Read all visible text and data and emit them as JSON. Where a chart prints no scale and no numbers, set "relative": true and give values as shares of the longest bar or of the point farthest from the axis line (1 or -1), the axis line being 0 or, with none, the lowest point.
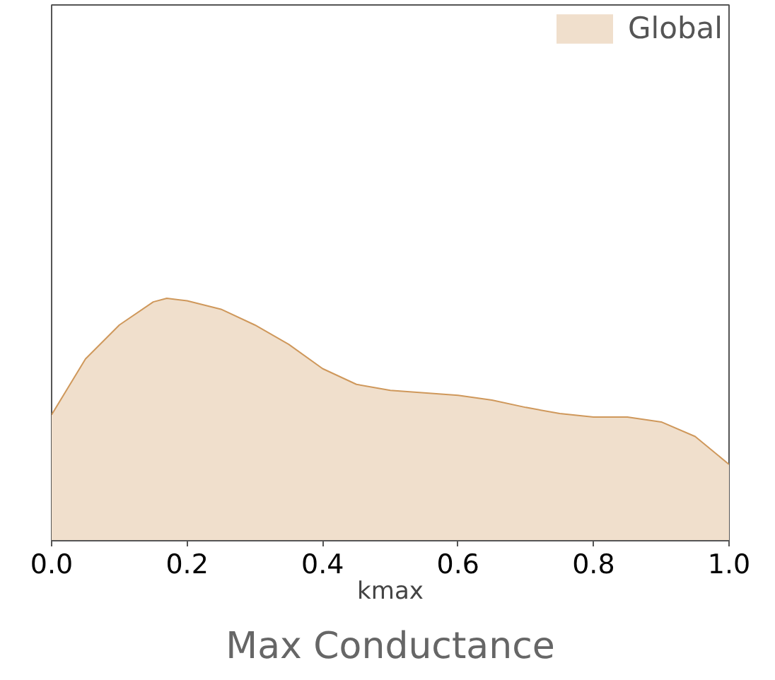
{
  "chart_data": {
    "type": "area",
    "title": "Max Conductance",
    "xlabel": "kmax",
    "relative": true,
    "x": [
      0.0,
      0.05,
      0.1,
      0.15,
      0.17,
      0.2,
      0.25,
      0.3,
      0.35,
      0.4,
      0.45,
      0.5,
      0.55,
      0.6,
      0.65,
      0.7,
      0.75,
      0.8,
      0.85,
      0.9,
      0.95,
      1.0
    ],
    "xlim": [
      0.0,
      1.0
    ],
    "xticks": [
      {
        "value": 0,
        "label": "0.0"
      },
      0.2,
      0.4,
      0.6,
      0.8,
      {
        "value": 1,
        "label": "1.0"
      }
    ],
    "series": [
      {
        "name": "Global",
        "color": "#f0dfcc",
        "values": [
          0.52,
          0.75,
          0.89,
          0.985,
          1,
          0.99,
          0.955,
          0.89,
          0.81,
          0.71,
          0.645,
          0.62,
          0.61,
          0.6,
          0.58,
          0.55,
          0.525,
          0.51,
          0.51,
          0.49,
          0.43,
          0.315
        ]
      }
    ],
    "legend": "top right",
    "grid": false
  }
}
